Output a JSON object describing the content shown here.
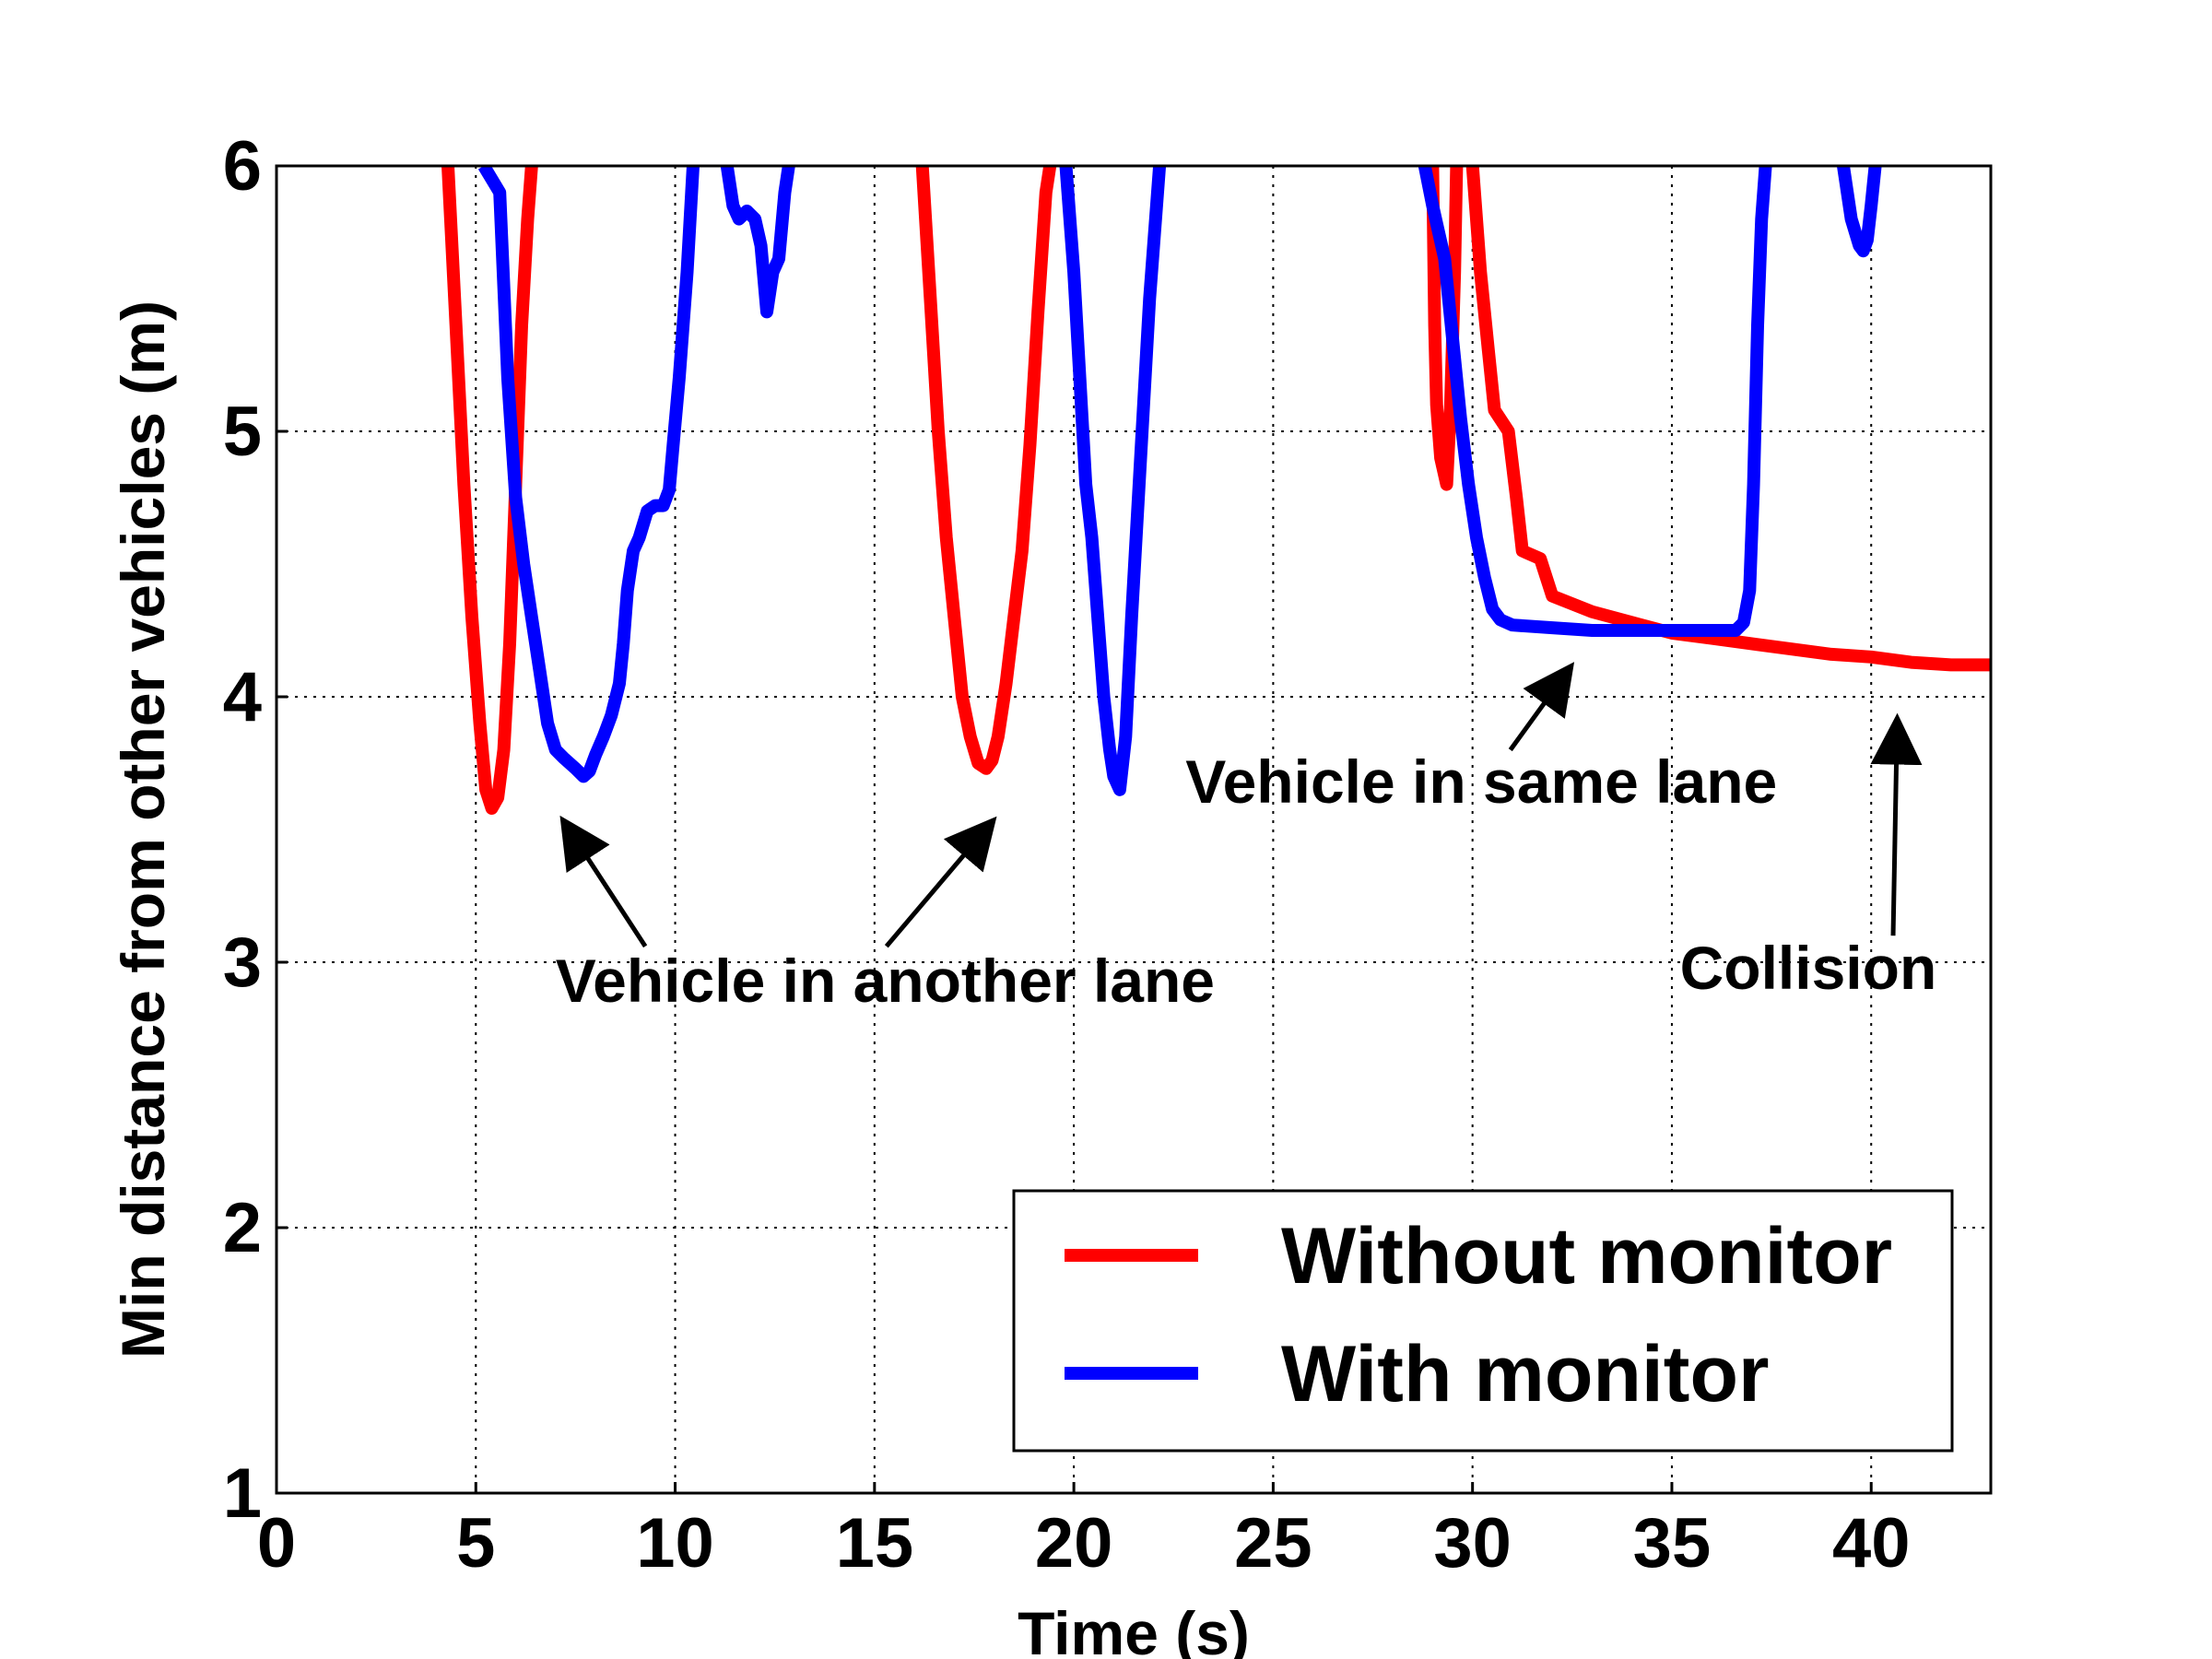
{
  "chart_data": {
    "type": "line",
    "title": "",
    "xlabel": "Time (s)",
    "ylabel": "Min distance from other vehicles (m)",
    "xlim": [
      0,
      43
    ],
    "ylim": [
      1,
      6
    ],
    "xticks": [
      0,
      5,
      10,
      15,
      20,
      25,
      30,
      35,
      40
    ],
    "yticks": [
      1,
      2,
      3,
      4,
      5,
      6
    ],
    "grid": true,
    "legend_position": "bottom-right",
    "series": [
      {
        "name": "Without monitor",
        "color": "#ff0000",
        "segments": [
          [
            [
              4.3,
              6.0
            ],
            [
              4.5,
              5.4
            ],
            [
              4.7,
              4.8
            ],
            [
              4.9,
              4.3
            ],
            [
              5.1,
              3.9
            ],
            [
              5.25,
              3.65
            ],
            [
              5.4,
              3.58
            ],
            [
              5.55,
              3.62
            ],
            [
              5.7,
              3.8
            ],
            [
              5.85,
              4.2
            ],
            [
              6.0,
              4.8
            ],
            [
              6.15,
              5.4
            ],
            [
              6.3,
              5.8
            ],
            [
              6.4,
              6.0
            ]
          ],
          [
            [
              16.2,
              6.0
            ],
            [
              16.4,
              5.5
            ],
            [
              16.6,
              5.0
            ],
            [
              16.8,
              4.6
            ],
            [
              17.0,
              4.3
            ],
            [
              17.2,
              4.0
            ],
            [
              17.4,
              3.85
            ],
            [
              17.6,
              3.75
            ],
            [
              17.8,
              3.73
            ],
            [
              17.95,
              3.76
            ],
            [
              18.1,
              3.85
            ],
            [
              18.3,
              4.05
            ],
            [
              18.5,
              4.3
            ],
            [
              18.7,
              4.55
            ],
            [
              18.9,
              4.95
            ],
            [
              19.1,
              5.45
            ],
            [
              19.3,
              5.9
            ],
            [
              19.4,
              6.0
            ]
          ],
          [
            [
              29.0,
              6.0
            ],
            [
              29.05,
              5.4
            ],
            [
              29.1,
              5.1
            ],
            [
              29.2,
              4.9
            ],
            [
              29.35,
              4.8
            ],
            [
              29.45,
              5.1
            ],
            [
              29.55,
              5.6
            ],
            [
              29.6,
              6.0
            ]
          ],
          [
            [
              30.0,
              6.0
            ],
            [
              30.2,
              5.6
            ],
            [
              30.4,
              5.3
            ],
            [
              30.55,
              5.08
            ],
            [
              30.9,
              5.0
            ],
            [
              31.1,
              4.75
            ],
            [
              31.25,
              4.55
            ],
            [
              31.7,
              4.52
            ],
            [
              32.0,
              4.38
            ],
            [
              33.0,
              4.32
            ],
            [
              34.0,
              4.28
            ],
            [
              35.0,
              4.24
            ],
            [
              36.0,
              4.22
            ],
            [
              37.0,
              4.2
            ],
            [
              38.0,
              4.18
            ],
            [
              39.0,
              4.16
            ],
            [
              40.0,
              4.15
            ],
            [
              41.0,
              4.13
            ],
            [
              42.0,
              4.12
            ],
            [
              43.0,
              4.12
            ]
          ]
        ]
      },
      {
        "name": "With monitor",
        "color": "#0000ff",
        "segments": [
          [
            [
              5.2,
              6.0
            ],
            [
              5.6,
              5.9
            ],
            [
              5.8,
              5.2
            ],
            [
              6.0,
              4.75
            ],
            [
              6.2,
              4.5
            ],
            [
              6.4,
              4.3
            ],
            [
              6.6,
              4.1
            ],
            [
              6.8,
              3.9
            ],
            [
              7.0,
              3.8
            ],
            [
              7.2,
              3.77
            ],
            [
              7.5,
              3.73
            ],
            [
              7.7,
              3.7
            ],
            [
              7.85,
              3.72
            ],
            [
              8.0,
              3.78
            ],
            [
              8.2,
              3.85
            ],
            [
              8.4,
              3.93
            ],
            [
              8.6,
              4.05
            ],
            [
              8.7,
              4.2
            ],
            [
              8.8,
              4.4
            ],
            [
              8.95,
              4.55
            ],
            [
              9.1,
              4.6
            ],
            [
              9.3,
              4.7
            ],
            [
              9.5,
              4.72
            ],
            [
              9.7,
              4.72
            ],
            [
              9.85,
              4.78
            ],
            [
              9.95,
              4.95
            ],
            [
              10.1,
              5.2
            ],
            [
              10.3,
              5.6
            ],
            [
              10.45,
              6.0
            ]
          ],
          [
            [
              11.3,
              6.0
            ],
            [
              11.45,
              5.85
            ],
            [
              11.6,
              5.8
            ],
            [
              11.8,
              5.83
            ],
            [
              12.0,
              5.8
            ],
            [
              12.15,
              5.7
            ],
            [
              12.3,
              5.45
            ],
            [
              12.45,
              5.6
            ],
            [
              12.6,
              5.65
            ],
            [
              12.75,
              5.9
            ],
            [
              12.85,
              6.0
            ]
          ],
          [
            [
              19.8,
              6.0
            ],
            [
              20.0,
              5.6
            ],
            [
              20.15,
              5.2
            ],
            [
              20.3,
              4.8
            ],
            [
              20.45,
              4.6
            ],
            [
              20.6,
              4.3
            ],
            [
              20.75,
              4.0
            ],
            [
              20.9,
              3.8
            ],
            [
              21.0,
              3.7
            ],
            [
              21.15,
              3.65
            ],
            [
              21.3,
              3.85
            ],
            [
              21.45,
              4.3
            ],
            [
              21.6,
              4.7
            ],
            [
              21.75,
              5.1
            ],
            [
              21.9,
              5.5
            ],
            [
              22.05,
              5.8
            ],
            [
              22.15,
              6.0
            ]
          ],
          [
            [
              28.8,
              6.0
            ],
            [
              29.0,
              5.85
            ],
            [
              29.3,
              5.65
            ],
            [
              29.5,
              5.35
            ],
            [
              29.7,
              5.05
            ],
            [
              29.9,
              4.8
            ],
            [
              30.1,
              4.6
            ],
            [
              30.3,
              4.45
            ],
            [
              30.5,
              4.33
            ],
            [
              30.7,
              4.29
            ],
            [
              31.0,
              4.27
            ],
            [
              32.0,
              4.26
            ],
            [
              33.0,
              4.25
            ],
            [
              34.0,
              4.25
            ],
            [
              35.0,
              4.25
            ],
            [
              36.0,
              4.25
            ],
            [
              36.6,
              4.25
            ],
            [
              36.8,
              4.28
            ],
            [
              36.95,
              4.4
            ],
            [
              37.05,
              4.8
            ],
            [
              37.15,
              5.4
            ],
            [
              37.25,
              5.8
            ],
            [
              37.35,
              6.0
            ]
          ],
          [
            [
              39.3,
              6.0
            ],
            [
              39.5,
              5.8
            ],
            [
              39.7,
              5.7
            ],
            [
              39.8,
              5.68
            ],
            [
              39.9,
              5.72
            ],
            [
              40.0,
              5.85
            ],
            [
              40.1,
              6.0
            ]
          ]
        ]
      }
    ],
    "annotations": [
      {
        "text": "Vehicle in another lane",
        "x": 7.0,
        "y": 2.85
      },
      {
        "text": "Vehicle in same lane",
        "x": 22.8,
        "y": 3.6
      },
      {
        "text": "Collision",
        "x": 35.2,
        "y": 2.9
      }
    ],
    "arrows": [
      {
        "from": [
          9.25,
          3.06
        ],
        "to": [
          7.25,
          3.52
        ]
      },
      {
        "from": [
          15.3,
          3.06
        ],
        "to": [
          17.9,
          3.52
        ]
      },
      {
        "from": [
          30.95,
          3.8
        ],
        "to": [
          32.4,
          4.1
        ]
      },
      {
        "from": [
          40.55,
          3.1
        ],
        "to": [
          40.65,
          3.9
        ]
      }
    ]
  }
}
